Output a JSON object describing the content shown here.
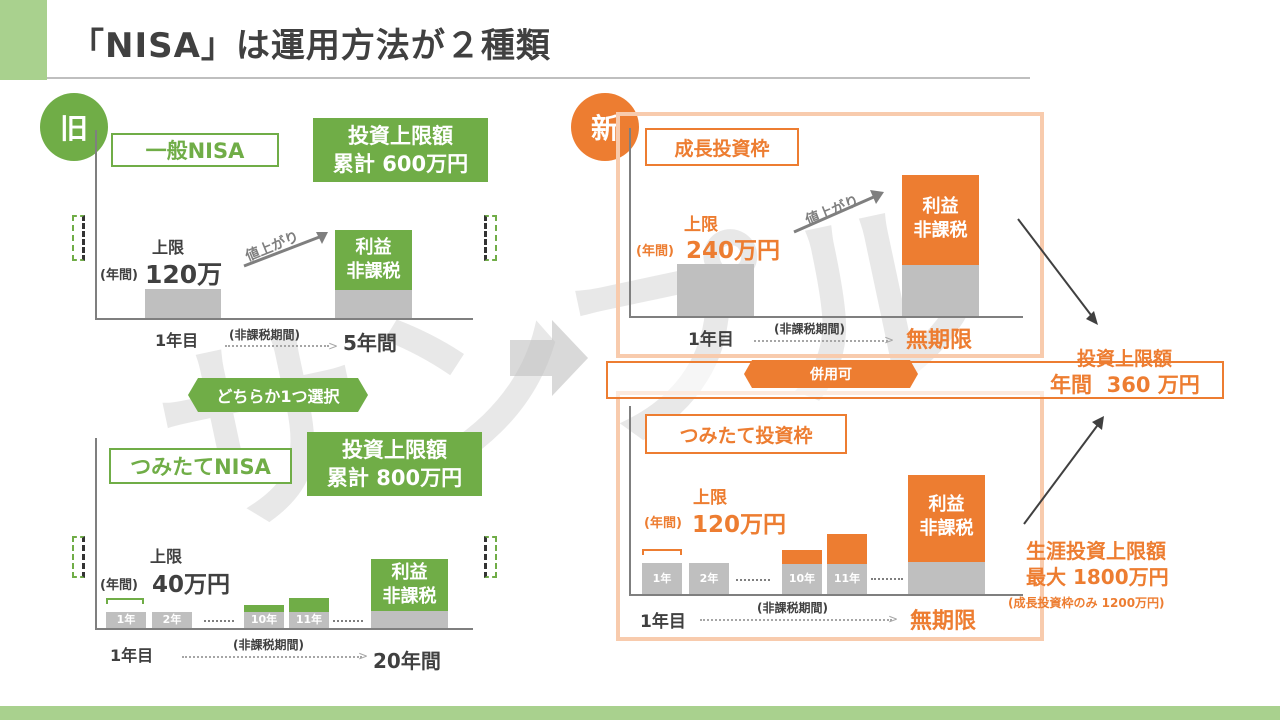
{
  "title": "「NISA」は運用方法が２種類",
  "watermark": "サンプル",
  "old": {
    "badge": "旧",
    "general": {
      "name": "一般NISA",
      "limit_line1": "投資上限額",
      "limit_line2": "累計 600万円",
      "cap_label": "上限",
      "cap_prefix": "(年間)",
      "cap_amount": "120万",
      "rise_label": "値上がり",
      "bar_label_1": "利益",
      "bar_label_2": "非課税",
      "year_start": "1年目",
      "period_label": "(非課税期間)",
      "period_end": "5年間"
    },
    "choice": "どちらか1つ選択",
    "tsumitate": {
      "name": "つみたてNISA",
      "limit_line1": "投資上限額",
      "limit_line2": "累計 800万円",
      "cap_label": "上限",
      "cap_prefix": "(年間)",
      "cap_amount": "40万円",
      "blocks": [
        "1年",
        "2年",
        "10年",
        "11年"
      ],
      "bar_label_1": "利益",
      "bar_label_2": "非課税",
      "year_start": "1年目",
      "period_label": "(非課税期間)",
      "period_end": "20年間"
    }
  },
  "new": {
    "badge": "新",
    "growth": {
      "name": "成長投資枠",
      "cap_label": "上限",
      "cap_prefix": "(年間)",
      "cap_amount": "240万円",
      "rise_label": "値上がり",
      "bar_label_1": "利益",
      "bar_label_2": "非課税",
      "year_start": "1年目",
      "period_label": "(非課税期間)",
      "period_end": "無期限"
    },
    "combined": "併用可",
    "tsumitate": {
      "name": "つみたて投資枠",
      "cap_label": "上限",
      "cap_prefix": "(年間)",
      "cap_amount": "120万円",
      "blocks": [
        "1年",
        "2年",
        "10年",
        "11年"
      ],
      "bar_label_1": "利益",
      "bar_label_2": "非課税",
      "year_start": "1年目",
      "period_label": "(非課税期間)",
      "period_end": "無期限"
    },
    "annual_limit_1": "投資上限額",
    "annual_limit_2": "年間  360 万円",
    "lifetime_1": "生涯投資上限額",
    "lifetime_2": "最大 1800万円",
    "lifetime_note": "(成長投資枠のみ 1200万円)"
  },
  "colors": {
    "green": "#70ad47",
    "orange": "#ed7d31",
    "light_orange": "#f8cbad",
    "gray": "#bfbfbf",
    "title_accent": "#a9d18e"
  }
}
